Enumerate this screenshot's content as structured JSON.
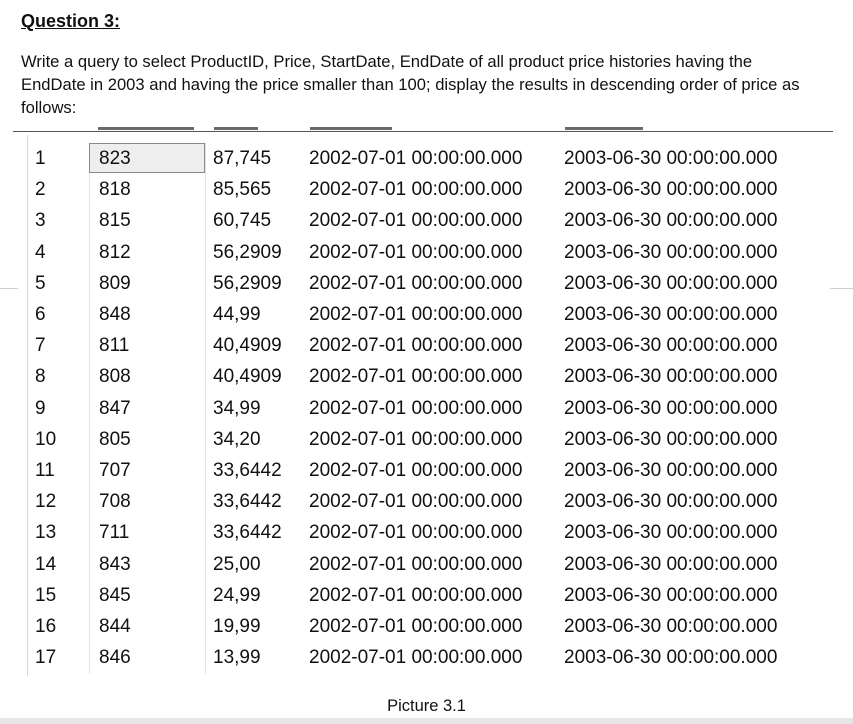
{
  "question": {
    "heading": "Question 3:",
    "text": "Write a query to select ProductID, Price, StartDate, EndDate of all product price histories having the EndDate in 2003 and having the price smaller than 100; display the results in descending order of price as follows:"
  },
  "results_grid": {
    "rows": [
      {
        "num": "1",
        "product_id": "823",
        "price": "87,745",
        "start_date": "2002-07-01 00:00:00.000",
        "end_date": "2003-06-30 00:00:00.000"
      },
      {
        "num": "2",
        "product_id": "818",
        "price": "85,565",
        "start_date": "2002-07-01 00:00:00.000",
        "end_date": "2003-06-30 00:00:00.000"
      },
      {
        "num": "3",
        "product_id": "815",
        "price": "60,745",
        "start_date": "2002-07-01 00:00:00.000",
        "end_date": "2003-06-30 00:00:00.000"
      },
      {
        "num": "4",
        "product_id": "812",
        "price": "56,2909",
        "start_date": "2002-07-01 00:00:00.000",
        "end_date": "2003-06-30 00:00:00.000"
      },
      {
        "num": "5",
        "product_id": "809",
        "price": "56,2909",
        "start_date": "2002-07-01 00:00:00.000",
        "end_date": "2003-06-30 00:00:00.000"
      },
      {
        "num": "6",
        "product_id": "848",
        "price": "44,99",
        "start_date": "2002-07-01 00:00:00.000",
        "end_date": "2003-06-30 00:00:00.000"
      },
      {
        "num": "7",
        "product_id": "811",
        "price": "40,4909",
        "start_date": "2002-07-01 00:00:00.000",
        "end_date": "2003-06-30 00:00:00.000"
      },
      {
        "num": "8",
        "product_id": "808",
        "price": "40,4909",
        "start_date": "2002-07-01 00:00:00.000",
        "end_date": "2003-06-30 00:00:00.000"
      },
      {
        "num": "9",
        "product_id": "847",
        "price": "34,99",
        "start_date": "2002-07-01 00:00:00.000",
        "end_date": "2003-06-30 00:00:00.000"
      },
      {
        "num": "10",
        "product_id": "805",
        "price": "34,20",
        "start_date": "2002-07-01 00:00:00.000",
        "end_date": "2003-06-30 00:00:00.000"
      },
      {
        "num": "11",
        "product_id": "707",
        "price": "33,6442",
        "start_date": "2002-07-01 00:00:00.000",
        "end_date": "2003-06-30 00:00:00.000"
      },
      {
        "num": "12",
        "product_id": "708",
        "price": "33,6442",
        "start_date": "2002-07-01 00:00:00.000",
        "end_date": "2003-06-30 00:00:00.000"
      },
      {
        "num": "13",
        "product_id": "711",
        "price": "33,6442",
        "start_date": "2002-07-01 00:00:00.000",
        "end_date": "2003-06-30 00:00:00.000"
      },
      {
        "num": "14",
        "product_id": "843",
        "price": "25,00",
        "start_date": "2002-07-01 00:00:00.000",
        "end_date": "2003-06-30 00:00:00.000"
      },
      {
        "num": "15",
        "product_id": "845",
        "price": "24,99",
        "start_date": "2002-07-01 00:00:00.000",
        "end_date": "2003-06-30 00:00:00.000"
      },
      {
        "num": "16",
        "product_id": "844",
        "price": "19,99",
        "start_date": "2002-07-01 00:00:00.000",
        "end_date": "2003-06-30 00:00:00.000"
      },
      {
        "num": "17",
        "product_id": "846",
        "price": "13,99",
        "start_date": "2002-07-01 00:00:00.000",
        "end_date": "2003-06-30 00:00:00.000"
      }
    ]
  },
  "caption": "Picture 3.1"
}
